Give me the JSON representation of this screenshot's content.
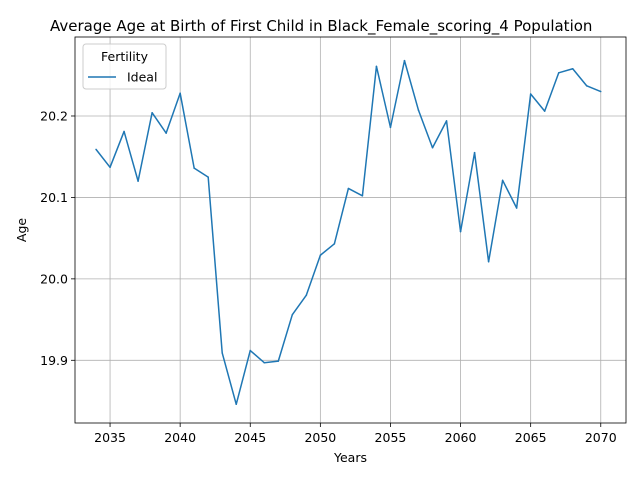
{
  "chart_data": {
    "type": "line",
    "title": "Average Age at Birth of First Child in Black_Female_scoring_4 Population",
    "xlabel": "Years",
    "ylabel": "Age",
    "xlim": [
      2032.5,
      2071.8
    ],
    "ylim": [
      19.823,
      20.297
    ],
    "xticks": [
      2035,
      2040,
      2045,
      2050,
      2055,
      2060,
      2065,
      2070
    ],
    "yticks": [
      19.9,
      20.0,
      20.1,
      20.2
    ],
    "ytick_labels": [
      "19.9",
      "20.0",
      "20.1",
      "20.2"
    ],
    "grid": true,
    "legend": {
      "title": "Fertility",
      "placement": "upper-left"
    },
    "series": [
      {
        "name": "Ideal",
        "color": "#1f77b4",
        "x": [
          2034,
          2035,
          2036,
          2037,
          2038,
          2039,
          2040,
          2041,
          2042,
          2043,
          2044,
          2045,
          2046,
          2047,
          2048,
          2049,
          2050,
          2051,
          2052,
          2053,
          2054,
          2055,
          2056,
          2057,
          2058,
          2059,
          2060,
          2061,
          2062,
          2063,
          2064,
          2065,
          2066,
          2067,
          2068,
          2069,
          2070
        ],
        "y": [
          20.159,
          20.137,
          20.181,
          20.12,
          20.204,
          20.179,
          20.228,
          20.136,
          20.125,
          19.909,
          19.846,
          19.912,
          19.897,
          19.899,
          19.956,
          19.98,
          20.029,
          20.043,
          20.111,
          20.102,
          20.261,
          20.186,
          20.268,
          20.207,
          20.161,
          20.194,
          20.058,
          20.155,
          20.021,
          20.121,
          20.087,
          20.227,
          20.206,
          20.253,
          20.258,
          20.237,
          20.23
        ]
      }
    ]
  }
}
